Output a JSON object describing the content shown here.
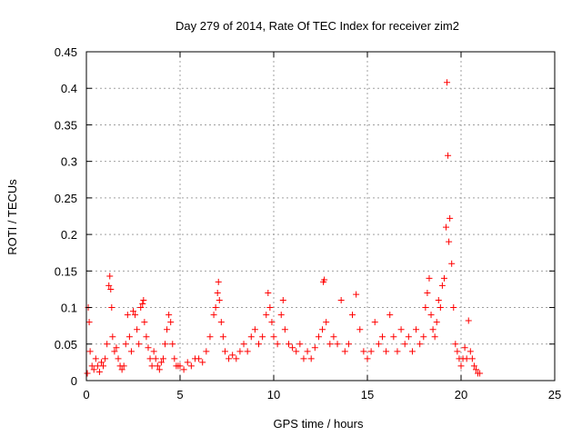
{
  "chart_data": {
    "type": "scatter",
    "title": "Day 279 of 2014, Rate Of TEC Index for receiver zim2",
    "xlabel": "GPS time / hours",
    "ylabel": "ROTI / TECUs",
    "xlim": [
      0,
      25
    ],
    "ylim": [
      0,
      0.45
    ],
    "xticks": [
      0,
      5,
      10,
      15,
      20,
      25
    ],
    "xtick_labels": [
      "0",
      "5",
      "10",
      "15",
      "20",
      "25"
    ],
    "yticks": [
      0,
      0.05,
      0.1,
      0.15,
      0.2,
      0.25,
      0.3,
      0.35,
      0.4,
      0.45
    ],
    "ytick_labels": [
      "0",
      "0.05",
      "0.1",
      "0.15",
      "0.2",
      "0.25",
      "0.3",
      "0.35",
      "0.4",
      "0.45"
    ],
    "grid": true,
    "marker": "+",
    "color": "#ff0000",
    "x": [
      0.05,
      0.1,
      0.15,
      0.2,
      0.3,
      0.4,
      0.5,
      0.6,
      0.7,
      0.8,
      0.9,
      1.0,
      1.1,
      1.2,
      1.25,
      1.3,
      1.35,
      1.4,
      1.5,
      1.6,
      1.7,
      1.8,
      1.9,
      2.0,
      2.1,
      2.2,
      2.3,
      2.4,
      2.5,
      2.6,
      2.7,
      2.8,
      2.9,
      3.0,
      3.05,
      3.1,
      3.2,
      3.3,
      3.4,
      3.5,
      3.6,
      3.7,
      3.8,
      3.9,
      4.0,
      4.1,
      4.2,
      4.3,
      4.4,
      4.5,
      4.6,
      4.7,
      4.8,
      4.9,
      5.0,
      5.2,
      5.4,
      5.6,
      5.8,
      6.0,
      6.2,
      6.4,
      6.6,
      6.8,
      6.9,
      7.0,
      7.05,
      7.1,
      7.2,
      7.3,
      7.4,
      7.6,
      7.8,
      8.0,
      8.2,
      8.4,
      8.6,
      8.8,
      9.0,
      9.2,
      9.4,
      9.6,
      9.7,
      9.8,
      9.9,
      10.0,
      10.2,
      10.4,
      10.5,
      10.6,
      10.8,
      11.0,
      11.2,
      11.4,
      11.6,
      11.8,
      12.0,
      12.2,
      12.4,
      12.6,
      12.65,
      12.7,
      12.8,
      13.0,
      13.2,
      13.4,
      13.6,
      13.8,
      14.0,
      14.2,
      14.4,
      14.6,
      14.8,
      15.0,
      15.2,
      15.4,
      15.6,
      15.8,
      16.0,
      16.2,
      16.4,
      16.6,
      16.8,
      17.0,
      17.2,
      17.4,
      17.6,
      17.8,
      18.0,
      18.1,
      18.2,
      18.3,
      18.4,
      18.5,
      18.6,
      18.7,
      18.8,
      18.9,
      19.0,
      19.1,
      19.2,
      19.25,
      19.3,
      19.35,
      19.4,
      19.5,
      19.6,
      19.7,
      19.8,
      19.9,
      20.0,
      20.1,
      20.2,
      20.3,
      20.4,
      20.5,
      20.6,
      20.7,
      20.8,
      20.9,
      21.0
    ],
    "y": [
      0.01,
      0.1,
      0.08,
      0.04,
      0.02,
      0.015,
      0.03,
      0.02,
      0.012,
      0.025,
      0.02,
      0.03,
      0.05,
      0.13,
      0.143,
      0.125,
      0.1,
      0.06,
      0.04,
      0.045,
      0.03,
      0.02,
      0.015,
      0.02,
      0.05,
      0.09,
      0.06,
      0.04,
      0.095,
      0.09,
      0.07,
      0.05,
      0.1,
      0.105,
      0.11,
      0.08,
      0.06,
      0.045,
      0.03,
      0.02,
      0.04,
      0.03,
      0.02,
      0.015,
      0.025,
      0.03,
      0.05,
      0.07,
      0.09,
      0.08,
      0.05,
      0.03,
      0.02,
      0.02,
      0.02,
      0.015,
      0.025,
      0.02,
      0.03,
      0.03,
      0.025,
      0.04,
      0.06,
      0.09,
      0.1,
      0.12,
      0.135,
      0.11,
      0.08,
      0.06,
      0.04,
      0.03,
      0.035,
      0.03,
      0.04,
      0.05,
      0.04,
      0.06,
      0.07,
      0.05,
      0.06,
      0.09,
      0.12,
      0.1,
      0.08,
      0.06,
      0.05,
      0.09,
      0.11,
      0.07,
      0.05,
      0.045,
      0.04,
      0.05,
      0.03,
      0.04,
      0.03,
      0.045,
      0.06,
      0.07,
      0.135,
      0.138,
      0.08,
      0.05,
      0.06,
      0.05,
      0.11,
      0.04,
      0.05,
      0.09,
      0.118,
      0.07,
      0.04,
      0.03,
      0.04,
      0.08,
      0.05,
      0.06,
      0.04,
      0.09,
      0.06,
      0.04,
      0.07,
      0.05,
      0.06,
      0.04,
      0.07,
      0.05,
      0.06,
      0.1,
      0.12,
      0.14,
      0.09,
      0.07,
      0.06,
      0.08,
      0.11,
      0.1,
      0.13,
      0.14,
      0.21,
      0.408,
      0.308,
      0.19,
      0.222,
      0.16,
      0.1,
      0.05,
      0.04,
      0.03,
      0.02,
      0.03,
      0.045,
      0.03,
      0.082,
      0.04,
      0.03,
      0.02,
      0.015,
      0.01,
      0.01
    ]
  }
}
